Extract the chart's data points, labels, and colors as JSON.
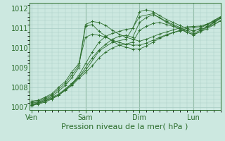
{
  "background_color": "#cce8e0",
  "grid_color": "#a8ccc4",
  "line_color": "#2d6e2d",
  "marker_color": "#2d6e2d",
  "ylabel_values": [
    1007,
    1008,
    1009,
    1010,
    1011,
    1012
  ],
  "ylim": [
    1006.85,
    1012.3
  ],
  "xlabel": "Pression niveau de la mer( hPa )",
  "x_ticks": [
    0,
    48,
    96,
    144
  ],
  "x_tick_labels": [
    "Ven",
    "Sam",
    "Dim",
    "Lun"
  ],
  "xlim": [
    -2,
    168
  ],
  "series": [
    [
      0,
      1007.15,
      6,
      1007.2,
      12,
      1007.3,
      18,
      1007.45,
      24,
      1007.6,
      30,
      1007.85,
      36,
      1008.15,
      42,
      1008.5,
      48,
      1009.0,
      54,
      1009.5,
      60,
      1009.9,
      66,
      1010.2,
      72,
      1010.45,
      78,
      1010.6,
      84,
      1010.65,
      90,
      1010.55,
      96,
      1011.3,
      102,
      1011.55,
      108,
      1011.7,
      114,
      1011.55,
      120,
      1011.35,
      126,
      1011.2,
      132,
      1011.05,
      138,
      1010.9,
      144,
      1010.75,
      150,
      1010.9,
      156,
      1011.1,
      162,
      1011.3,
      168,
      1011.55
    ],
    [
      0,
      1007.1,
      6,
      1007.15,
      12,
      1007.25,
      18,
      1007.4,
      24,
      1007.6,
      30,
      1007.9,
      36,
      1008.2,
      42,
      1008.6,
      48,
      1009.2,
      54,
      1009.8,
      60,
      1010.3,
      66,
      1010.6,
      72,
      1010.75,
      78,
      1010.85,
      84,
      1010.95,
      90,
      1011.0,
      96,
      1011.85,
      102,
      1011.95,
      108,
      1011.85,
      114,
      1011.65,
      120,
      1011.45,
      126,
      1011.3,
      132,
      1011.15,
      138,
      1011.0,
      144,
      1010.85,
      150,
      1011.0,
      156,
      1011.2,
      162,
      1011.4,
      168,
      1011.6
    ],
    [
      0,
      1007.1,
      12,
      1007.35,
      24,
      1007.65,
      36,
      1008.2,
      48,
      1008.85,
      60,
      1009.85,
      72,
      1010.3,
      84,
      1010.45,
      96,
      1011.6,
      108,
      1011.75,
      120,
      1011.3,
      132,
      1011.0,
      144,
      1010.65,
      156,
      1011.05,
      168,
      1011.5
    ],
    [
      0,
      1007.05,
      12,
      1007.3,
      24,
      1007.6,
      36,
      1008.1,
      42,
      1008.45,
      48,
      1008.75,
      54,
      1009.1,
      60,
      1009.5,
      66,
      1009.8,
      72,
      1010.0,
      78,
      1010.15,
      84,
      1010.2,
      90,
      1010.3,
      96,
      1010.9,
      102,
      1011.1,
      108,
      1011.25,
      114,
      1011.3,
      120,
      1011.2,
      126,
      1011.1,
      132,
      1010.95,
      138,
      1010.8,
      144,
      1010.7,
      150,
      1010.82,
      156,
      1010.98,
      162,
      1011.18,
      168,
      1011.38
    ],
    [
      0,
      1007.2,
      6,
      1007.25,
      12,
      1007.4,
      18,
      1007.55,
      24,
      1007.8,
      30,
      1008.1,
      36,
      1008.5,
      42,
      1009.0,
      48,
      1011.1,
      54,
      1011.2,
      60,
      1010.85,
      66,
      1010.6,
      72,
      1010.35,
      78,
      1010.15,
      84,
      1010.05,
      90,
      1009.95,
      96,
      1009.95,
      102,
      1010.1,
      108,
      1010.3,
      114,
      1010.5,
      120,
      1010.65,
      126,
      1010.78,
      132,
      1010.88,
      138,
      1010.92,
      144,
      1010.9,
      150,
      1010.95,
      156,
      1011.05,
      162,
      1011.2,
      168,
      1011.4
    ],
    [
      0,
      1007.25,
      6,
      1007.3,
      12,
      1007.45,
      18,
      1007.62,
      24,
      1007.9,
      30,
      1008.2,
      36,
      1008.65,
      42,
      1009.1,
      48,
      1011.2,
      54,
      1011.35,
      60,
      1011.3,
      66,
      1011.15,
      72,
      1010.9,
      78,
      1010.7,
      84,
      1010.55,
      90,
      1010.45,
      96,
      1010.35,
      102,
      1010.45,
      108,
      1010.58,
      114,
      1010.72,
      120,
      1010.82,
      126,
      1010.92,
      132,
      1011.02,
      138,
      1011.08,
      144,
      1011.1,
      150,
      1011.12,
      156,
      1011.22,
      162,
      1011.38,
      168,
      1011.58
    ],
    [
      0,
      1007.3,
      6,
      1007.35,
      12,
      1007.5,
      18,
      1007.68,
      24,
      1008.0,
      30,
      1008.3,
      36,
      1008.8,
      42,
      1009.2,
      48,
      1010.55,
      54,
      1010.7,
      60,
      1010.65,
      66,
      1010.55,
      72,
      1010.4,
      78,
      1010.28,
      84,
      1010.2,
      90,
      1010.15,
      96,
      1010.15,
      102,
      1010.25,
      108,
      1010.4,
      114,
      1010.55,
      120,
      1010.68,
      126,
      1010.8,
      132,
      1010.9,
      138,
      1011.0,
      144,
      1011.05,
      150,
      1011.08,
      156,
      1011.18,
      162,
      1011.33,
      168,
      1011.53
    ]
  ],
  "vline_positions": [
    48,
    96,
    144
  ],
  "title_fontsize": 7,
  "tick_fontsize": 7,
  "xlabel_fontsize": 8
}
